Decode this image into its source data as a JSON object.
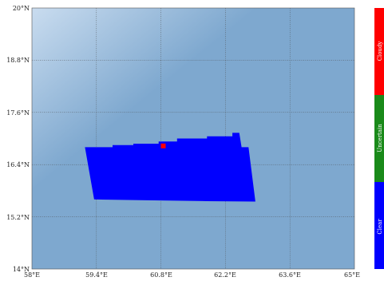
{
  "map": {
    "lat_labels": [
      "20°N",
      "18.8°N",
      "17.6°N",
      "16.4°N",
      "15.2°N",
      "14°N"
    ],
    "lon_labels": [
      "58°E",
      "59.4°E",
      "60.8°E",
      "62.2°E",
      "63.6°E",
      "65°E"
    ],
    "lat_range": [
      14,
      20
    ],
    "lon_range": [
      58,
      65
    ],
    "lat_ticks": [
      20,
      18.8,
      17.6,
      16.4,
      15.2,
      14
    ],
    "lon_ticks": [
      58,
      59.4,
      60.8,
      62.2,
      63.6,
      65
    ],
    "grid": true,
    "grid_style": "dotted",
    "background_colors": {
      "ocean": "#7ea8cf",
      "ocean_light": "#c9dcef"
    },
    "clear_region": {
      "color": "#0000ff",
      "outline_lonlat": [
        [
          59.15,
          16.8
        ],
        [
          59.75,
          16.8
        ],
        [
          59.75,
          16.85
        ],
        [
          60.2,
          16.85
        ],
        [
          60.2,
          16.88
        ],
        [
          60.75,
          16.88
        ],
        [
          60.75,
          16.93
        ],
        [
          61.15,
          16.93
        ],
        [
          61.15,
          17.0
        ],
        [
          61.8,
          17.0
        ],
        [
          61.8,
          17.05
        ],
        [
          62.35,
          17.05
        ],
        [
          62.35,
          17.13
        ],
        [
          62.5,
          17.13
        ],
        [
          62.55,
          16.8
        ],
        [
          62.7,
          16.8
        ],
        [
          62.85,
          15.55
        ],
        [
          61.8,
          15.56
        ],
        [
          60.5,
          15.58
        ],
        [
          59.35,
          15.6
        ]
      ]
    },
    "cloudy_pixel": {
      "color": "#ff0000",
      "lon": 60.85,
      "lat": 16.83
    }
  },
  "legend": {
    "title": "",
    "position": "right",
    "items": [
      {
        "label": "Cloudy",
        "color": "#ff0000"
      },
      {
        "label": "Uncertain",
        "color": "#1a8a1a"
      },
      {
        "label": "Clear",
        "color": "#0000ff"
      }
    ]
  }
}
